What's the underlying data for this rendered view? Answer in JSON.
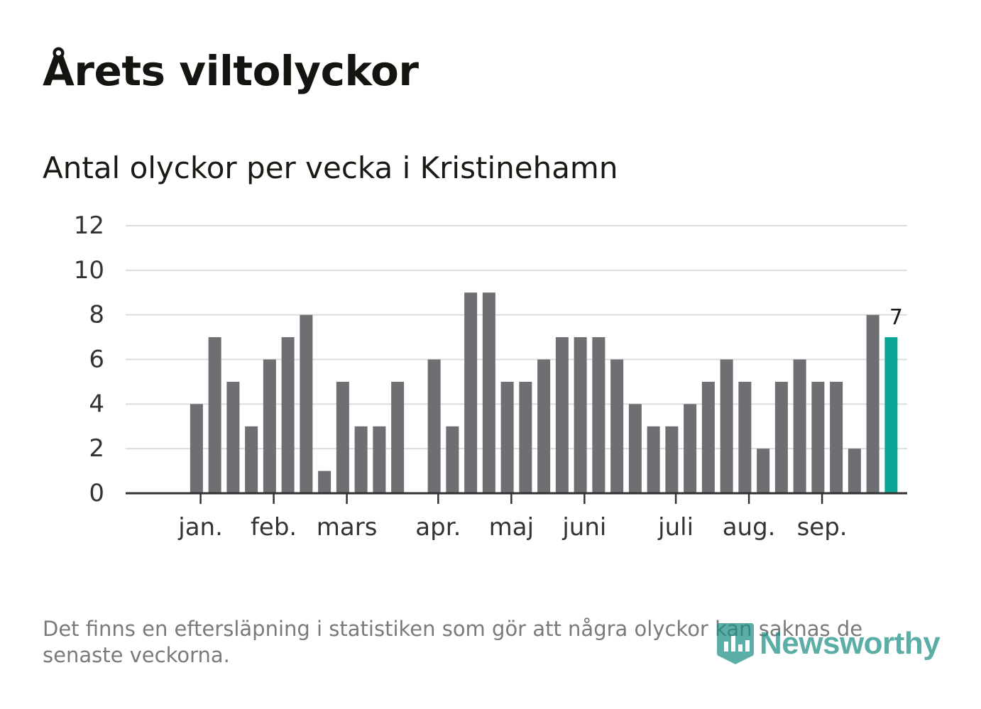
{
  "title": "Årets viltolyckor",
  "subtitle": "Antal olyckor per vecka i Kristinehamn",
  "footnote": "Det finns en eftersläpning i statistiken som gör att några olyckor kan saknas de senaste veckorna.",
  "brand": {
    "name": "Newsworthy",
    "icon": "newsworthy-logo-icon"
  },
  "colors": {
    "bar": "#6e6e73",
    "highlight": "#0aa596",
    "grid": "#dcdcdc",
    "axis": "#333333",
    "text": "#333333"
  },
  "chart_data": {
    "type": "bar",
    "title": "Antal olyckor per vecka i Kristinehamn",
    "xlabel": "",
    "ylabel": "",
    "ylim": [
      0,
      12
    ],
    "yticks": [
      0,
      2,
      4,
      6,
      8,
      10,
      12
    ],
    "grid": true,
    "x": [
      1,
      2,
      3,
      4,
      5,
      6,
      7,
      8,
      9,
      10,
      11,
      12,
      13,
      14,
      15,
      16,
      17,
      18,
      19,
      20,
      21,
      22,
      23,
      24,
      25,
      26,
      27,
      28,
      29,
      30,
      31,
      32,
      33,
      34,
      35,
      36,
      37,
      38,
      39,
      40,
      41,
      42
    ],
    "values": [
      0,
      0,
      4,
      7,
      5,
      3,
      6,
      7,
      8,
      1,
      5,
      3,
      3,
      5,
      0,
      6,
      3,
      9,
      9,
      5,
      5,
      6,
      7,
      7,
      7,
      6,
      4,
      3,
      3,
      4,
      5,
      6,
      5,
      2,
      5,
      6,
      5,
      5,
      2,
      8,
      7,
      0
    ],
    "highlight_index": 40,
    "highlight_label": "7",
    "month_ticks": [
      {
        "label": "jan.",
        "week": 3.8
      },
      {
        "label": "feb.",
        "week": 7.8
      },
      {
        "label": "mars",
        "week": 11.8
      },
      {
        "label": "apr.",
        "week": 16.8
      },
      {
        "label": "maj",
        "week": 20.8
      },
      {
        "label": "juni",
        "week": 24.8
      },
      {
        "label": "juli",
        "week": 29.8
      },
      {
        "label": "aug.",
        "week": 33.8
      },
      {
        "label": "sep.",
        "week": 37.8
      }
    ]
  }
}
